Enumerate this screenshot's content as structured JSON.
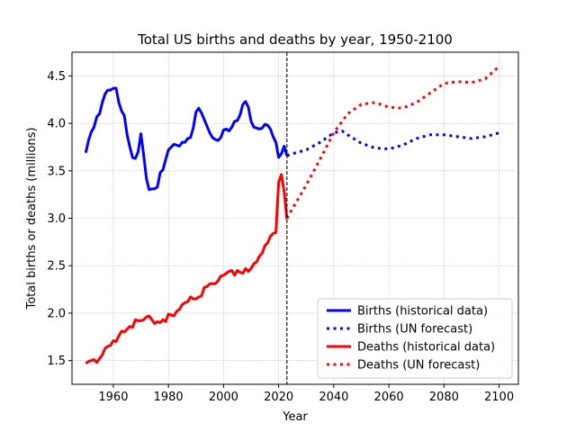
{
  "chart_data": {
    "type": "line",
    "title": "Total US births and deaths by year, 1950-2100",
    "xlabel": "Year",
    "ylabel": "Total births or deaths (millions)",
    "xlim": [
      1945,
      2107
    ],
    "ylim": [
      1.25,
      4.75
    ],
    "xticks": [
      1960,
      1980,
      2000,
      2020,
      2040,
      2060,
      2080,
      2100
    ],
    "yticks": [
      1.5,
      2.0,
      2.5,
      3.0,
      3.5,
      4.0,
      4.5
    ],
    "grid": true,
    "vline": {
      "x": 2023,
      "style": "dashed",
      "color": "#000000"
    },
    "legend": {
      "position": "lower-right"
    },
    "series": [
      {
        "name": "Births (historical data)",
        "color": "#0000ff",
        "style": "solid",
        "x": [
          1950,
          1951,
          1952,
          1953,
          1954,
          1955,
          1956,
          1957,
          1958,
          1959,
          1960,
          1961,
          1962,
          1963,
          1964,
          1965,
          1966,
          1967,
          1968,
          1969,
          1970,
          1971,
          1972,
          1973,
          1974,
          1975,
          1976,
          1977,
          1978,
          1979,
          1980,
          1981,
          1982,
          1983,
          1984,
          1985,
          1986,
          1987,
          1988,
          1989,
          1990,
          1991,
          1992,
          1993,
          1994,
          1995,
          1996,
          1997,
          1998,
          1999,
          2000,
          2001,
          2002,
          2003,
          2004,
          2005,
          2006,
          2007,
          2008,
          2009,
          2010,
          2011,
          2012,
          2013,
          2014,
          2015,
          2016,
          2017,
          2018,
          2019,
          2020,
          2021,
          2022,
          2023
        ],
        "y": [
          3.69,
          3.82,
          3.91,
          3.96,
          4.07,
          4.1,
          4.22,
          4.31,
          4.35,
          4.35,
          4.37,
          4.37,
          4.22,
          4.13,
          4.08,
          3.88,
          3.75,
          3.64,
          3.63,
          3.7,
          3.89,
          3.67,
          3.42,
          3.3,
          3.31,
          3.31,
          3.33,
          3.48,
          3.51,
          3.62,
          3.72,
          3.75,
          3.78,
          3.77,
          3.76,
          3.8,
          3.8,
          3.84,
          3.85,
          3.95,
          4.12,
          4.16,
          4.11,
          4.04,
          3.97,
          3.9,
          3.85,
          3.83,
          3.82,
          3.85,
          3.93,
          3.94,
          3.92,
          3.96,
          4.02,
          4.03,
          4.09,
          4.2,
          4.23,
          4.17,
          4.02,
          3.96,
          3.95,
          3.94,
          3.95,
          3.99,
          3.98,
          3.94,
          3.86,
          3.8,
          3.64,
          3.68,
          3.76,
          3.66
        ]
      },
      {
        "name": "Births (UN forecast)",
        "color": "#0000ff",
        "style": "dotted",
        "x": [
          2023,
          2025,
          2030,
          2035,
          2040,
          2043,
          2045,
          2050,
          2055,
          2060,
          2065,
          2070,
          2075,
          2080,
          2085,
          2090,
          2095,
          2100
        ],
        "y": [
          3.66,
          3.68,
          3.72,
          3.8,
          3.9,
          3.92,
          3.88,
          3.79,
          3.74,
          3.73,
          3.77,
          3.84,
          3.88,
          3.88,
          3.86,
          3.84,
          3.86,
          3.9
        ]
      },
      {
        "name": "Deaths (historical data)",
        "color": "#ff0000",
        "style": "solid",
        "x": [
          1950,
          1951,
          1952,
          1953,
          1954,
          1955,
          1956,
          1957,
          1958,
          1959,
          1960,
          1961,
          1962,
          1963,
          1964,
          1965,
          1966,
          1967,
          1968,
          1969,
          1970,
          1971,
          1972,
          1973,
          1974,
          1975,
          1976,
          1977,
          1978,
          1979,
          1980,
          1981,
          1982,
          1983,
          1984,
          1985,
          1986,
          1987,
          1988,
          1989,
          1990,
          1991,
          1992,
          1993,
          1994,
          1995,
          1996,
          1997,
          1998,
          1999,
          2000,
          2001,
          2002,
          2003,
          2004,
          2005,
          2006,
          2007,
          2008,
          2009,
          2010,
          2011,
          2012,
          2013,
          2014,
          2015,
          2016,
          2017,
          2018,
          2019,
          2020,
          2021,
          2022,
          2023
        ],
        "y": [
          1.47,
          1.49,
          1.5,
          1.51,
          1.48,
          1.52,
          1.56,
          1.63,
          1.65,
          1.66,
          1.71,
          1.7,
          1.76,
          1.81,
          1.8,
          1.83,
          1.86,
          1.85,
          1.93,
          1.92,
          1.92,
          1.93,
          1.96,
          1.97,
          1.93,
          1.89,
          1.91,
          1.9,
          1.93,
          1.91,
          1.99,
          1.98,
          1.97,
          2.02,
          2.04,
          2.09,
          2.11,
          2.12,
          2.17,
          2.15,
          2.15,
          2.17,
          2.18,
          2.27,
          2.28,
          2.31,
          2.31,
          2.31,
          2.34,
          2.39,
          2.4,
          2.42,
          2.44,
          2.45,
          2.4,
          2.45,
          2.43,
          2.42,
          2.47,
          2.44,
          2.47,
          2.52,
          2.54,
          2.6,
          2.63,
          2.71,
          2.74,
          2.81,
          2.84,
          2.85,
          3.38,
          3.46,
          3.28,
          2.99
        ]
      },
      {
        "name": "Deaths (UN forecast)",
        "color": "#ff0000",
        "style": "dotted",
        "x": [
          2023,
          2025,
          2030,
          2035,
          2040,
          2045,
          2050,
          2055,
          2060,
          2065,
          2070,
          2075,
          2080,
          2085,
          2090,
          2095,
          2100
        ],
        "y": [
          3.0,
          3.1,
          3.35,
          3.62,
          3.9,
          4.1,
          4.2,
          4.22,
          4.17,
          4.16,
          4.22,
          4.32,
          4.42,
          4.44,
          4.43,
          4.47,
          4.6
        ]
      }
    ]
  }
}
